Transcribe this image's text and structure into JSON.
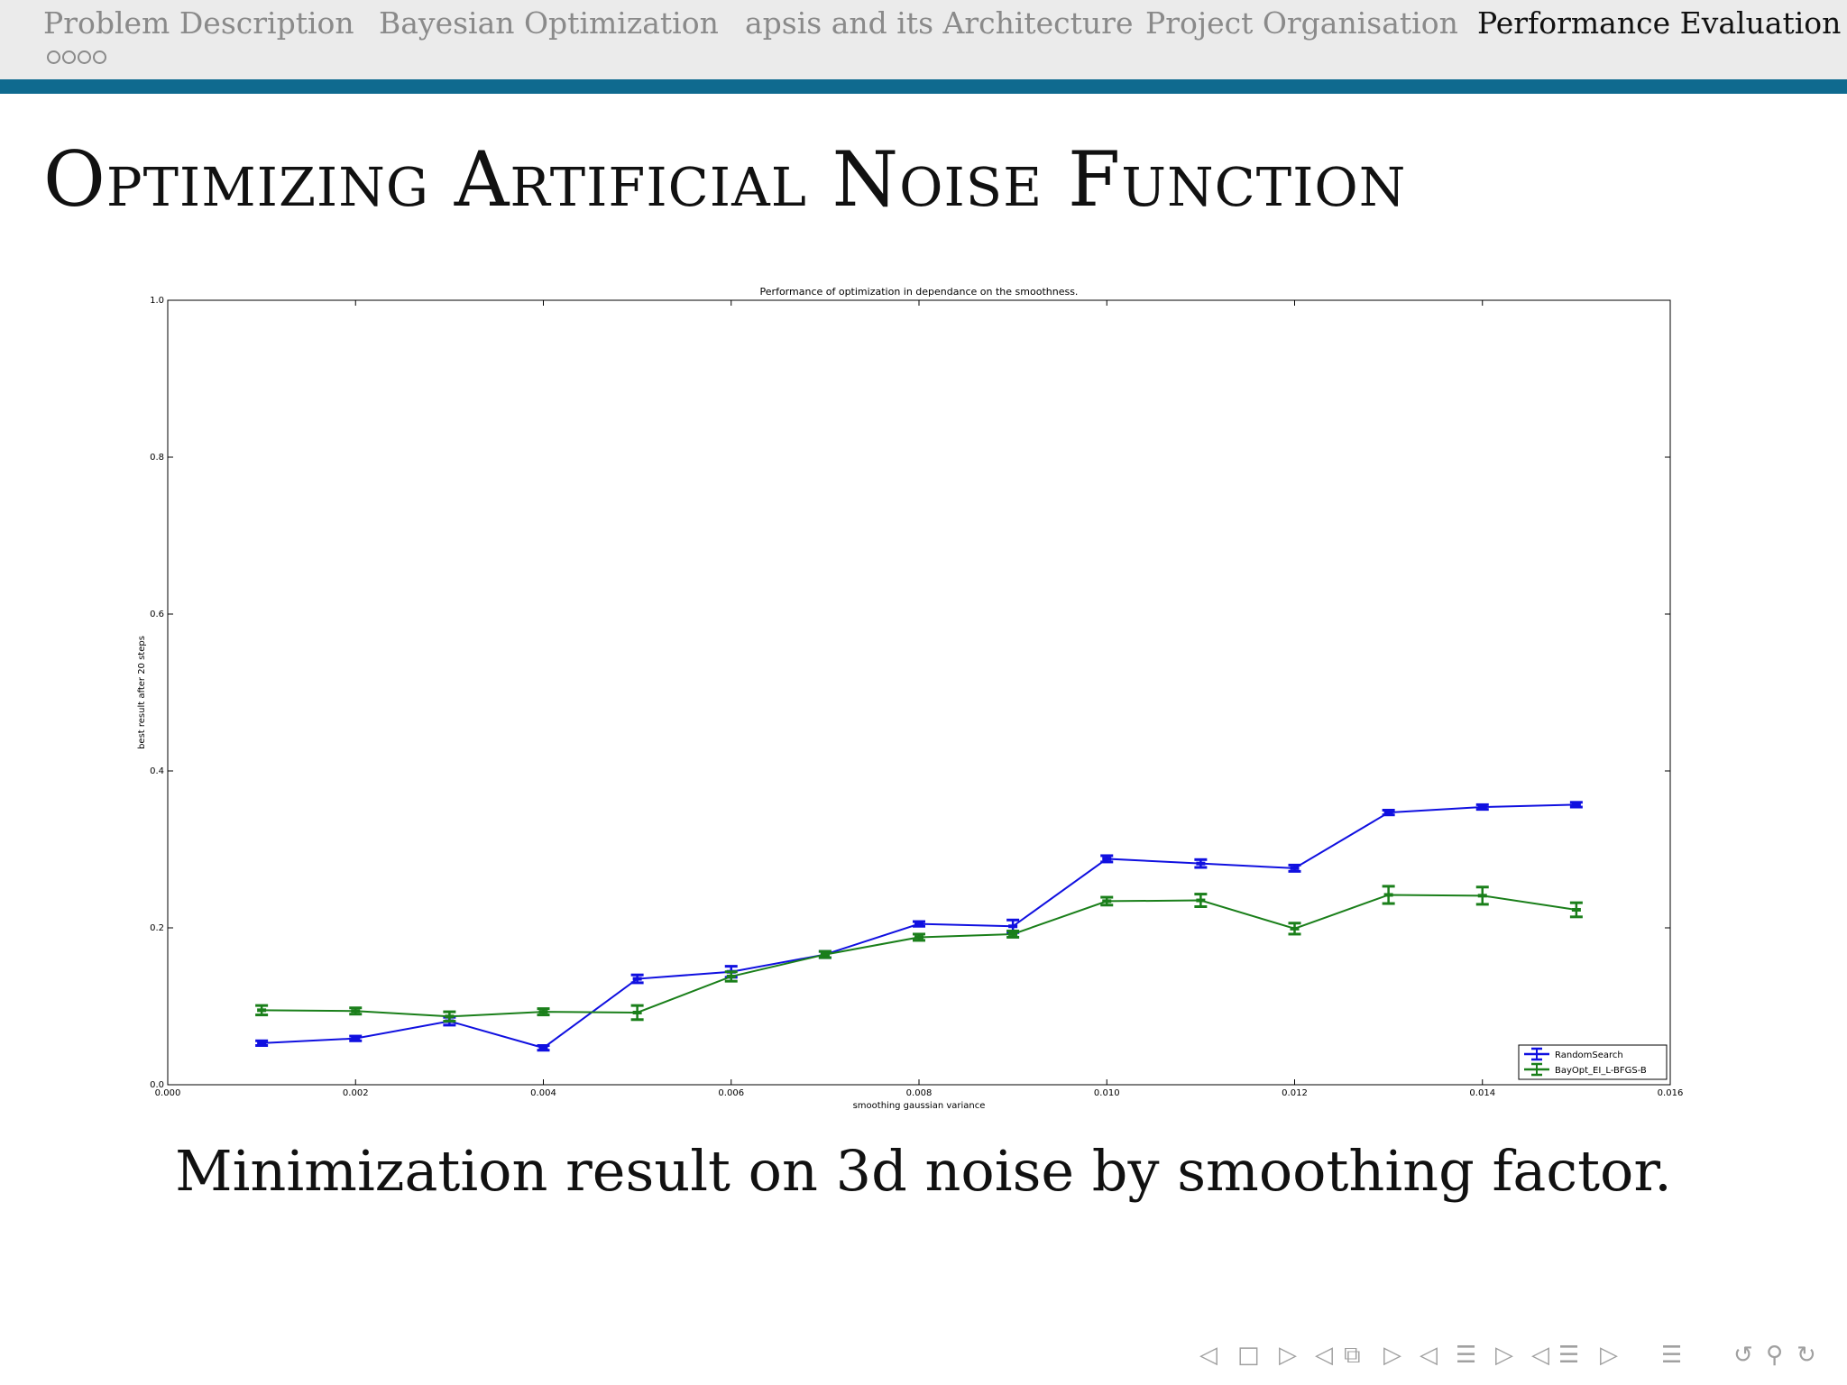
{
  "nav": {
    "sections": [
      {
        "label": "Problem Description",
        "active": false
      },
      {
        "label": "Bayesian Optimization",
        "active": false
      },
      {
        "label": "apsis and its Architecture",
        "active": false
      },
      {
        "label": "Project Organisation",
        "active": false
      },
      {
        "label": "Performance Evaluation",
        "active": true
      }
    ],
    "subsection_dots": 4,
    "accent_color": "#0f6a8f"
  },
  "slide": {
    "title": "Optimizing Artificial Noise Function",
    "caption": "Minimization result on 3d noise by smoothing factor."
  },
  "nav_controls": [
    {
      "name": "prev-frame-icon",
      "glyph": "◁"
    },
    {
      "name": "frame-icon",
      "glyph": "□"
    },
    {
      "name": "next-frame-icon",
      "glyph": "▷"
    },
    {
      "name": "prev-subsection-icon",
      "glyph": "◁"
    },
    {
      "name": "subsection-icon",
      "glyph": "⧉"
    },
    {
      "name": "next-subsection-icon",
      "glyph": "▷"
    },
    {
      "name": "prev-section-icon",
      "glyph": "◁"
    },
    {
      "name": "section-icon",
      "glyph": "☰"
    },
    {
      "name": "next-section-icon",
      "glyph": "▷"
    },
    {
      "name": "prev-document-icon",
      "glyph": "◁"
    },
    {
      "name": "document-icon",
      "glyph": "☰"
    },
    {
      "name": "next-document-icon",
      "glyph": "▷"
    },
    {
      "name": "appendix-icon",
      "glyph": "☰"
    },
    {
      "name": "back-icon",
      "glyph": "↺"
    },
    {
      "name": "search-icon",
      "glyph": "⚲"
    },
    {
      "name": "forward-icon",
      "glyph": "↻"
    }
  ],
  "chart_data": {
    "type": "line",
    "title": "Performance of optimization in dependance on the smoothness.",
    "xlabel": "smoothing gaussian variance",
    "ylabel": "best result after 20 steps",
    "xlim": [
      0.0,
      0.016
    ],
    "ylim": [
      0.0,
      1.0
    ],
    "xticks": [
      "0.000",
      "0.002",
      "0.004",
      "0.006",
      "0.008",
      "0.010",
      "0.012",
      "0.014",
      "0.016"
    ],
    "yticks": [
      "0.0",
      "0.2",
      "0.4",
      "0.6",
      "0.8",
      "1.0"
    ],
    "grid": false,
    "legend_position": "lower right",
    "x": [
      0.001,
      0.002,
      0.003,
      0.004,
      0.005,
      0.006,
      0.007,
      0.008,
      0.009,
      0.01,
      0.011,
      0.012,
      0.013,
      0.014,
      0.015
    ],
    "series": [
      {
        "name": "RandomSearch",
        "color": "#1010e0",
        "values": [
          0.053,
          0.059,
          0.081,
          0.047,
          0.135,
          0.144,
          0.166,
          0.205,
          0.202,
          0.288,
          0.282,
          0.276,
          0.347,
          0.354,
          0.357
        ],
        "errors": [
          0.003,
          0.003,
          0.005,
          0.003,
          0.005,
          0.007,
          0.004,
          0.003,
          0.008,
          0.004,
          0.005,
          0.004,
          0.003,
          0.003,
          0.003
        ]
      },
      {
        "name": "BayOpt_EI_L-BFGS-B",
        "color": "#1a7f1a",
        "values": [
          0.095,
          0.094,
          0.087,
          0.093,
          0.092,
          0.138,
          0.166,
          0.188,
          0.192,
          0.234,
          0.235,
          0.199,
          0.242,
          0.241,
          0.223
        ],
        "errors": [
          0.006,
          0.004,
          0.006,
          0.004,
          0.009,
          0.006,
          0.004,
          0.004,
          0.004,
          0.005,
          0.008,
          0.007,
          0.011,
          0.011,
          0.009
        ]
      }
    ]
  }
}
